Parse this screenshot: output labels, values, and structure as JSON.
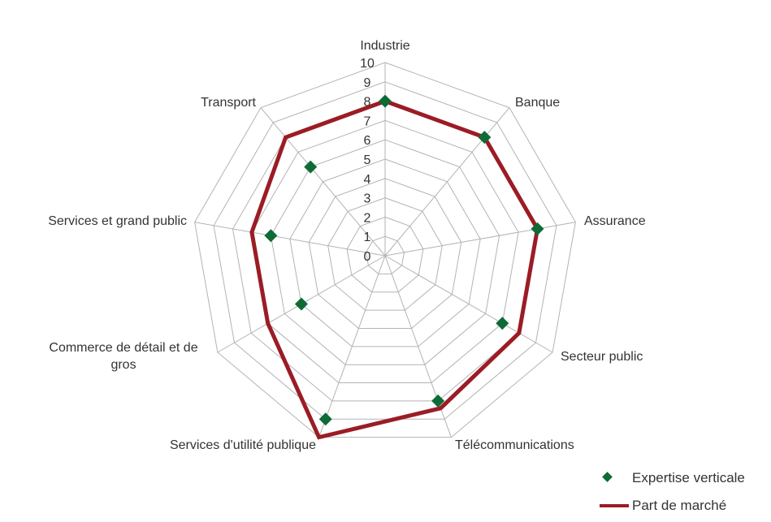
{
  "chart_data": {
    "type": "radar",
    "categories": [
      "Industrie",
      "Banque",
      "Assurance",
      "Secteur public",
      "Télécommunications",
      "Services d'utilité publique",
      "Commerce de détail et de gros",
      "Services et grand public",
      "Transport"
    ],
    "ticks": [
      "0",
      "1",
      "2",
      "3",
      "4",
      "5",
      "6",
      "7",
      "8",
      "9",
      "10"
    ],
    "rmax": 10,
    "grid": true,
    "legend_position": "bottom-right",
    "series": [
      {
        "name": "Expertise verticale",
        "marker": "diamond",
        "color": "#0e6b35",
        "values": [
          8,
          8,
          8,
          7,
          8,
          9,
          5,
          6,
          6
        ]
      },
      {
        "name": "Part de marché",
        "marker": "line",
        "color": "#9b1c25",
        "values": [
          8,
          8,
          8,
          8,
          8.4,
          10,
          7,
          7,
          8
        ]
      }
    ]
  },
  "legend": {
    "items": [
      "Expertise verticale",
      "Part de marché"
    ]
  }
}
